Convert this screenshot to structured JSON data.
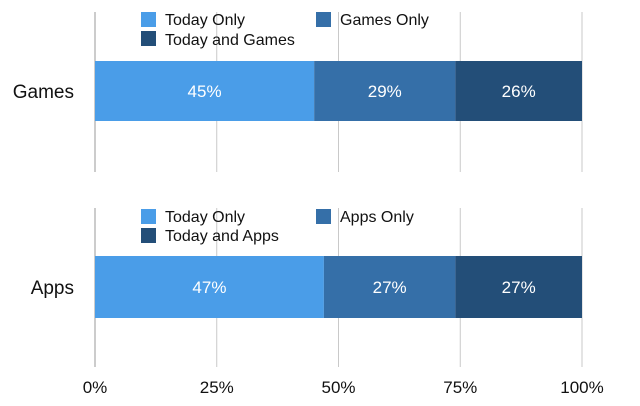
{
  "chart_data": {
    "type": "bar",
    "orientation": "horizontal",
    "stacked": true,
    "percent_stacked": true,
    "xlim": [
      0,
      100
    ],
    "x_ticks": [
      "0%",
      "25%",
      "50%",
      "75%",
      "100%"
    ],
    "grid": true,
    "panels": [
      {
        "category": "Games",
        "series": [
          {
            "name": "Today Only",
            "value": 45,
            "label": "45%",
            "color": "#4a9de8"
          },
          {
            "name": "Games Only",
            "value": 29,
            "label": "29%",
            "color": "#356fa8"
          },
          {
            "name": "Today and Games",
            "value": 26,
            "label": "26%",
            "color": "#234e78"
          }
        ]
      },
      {
        "category": "Apps",
        "series": [
          {
            "name": "Today Only",
            "value": 47,
            "label": "47%",
            "color": "#4a9de8"
          },
          {
            "name": "Apps Only",
            "value": 27,
            "label": "27%",
            "color": "#356fa8"
          },
          {
            "name": "Today and Apps",
            "value": 27,
            "label": "27%",
            "color": "#234e78"
          }
        ]
      }
    ]
  }
}
